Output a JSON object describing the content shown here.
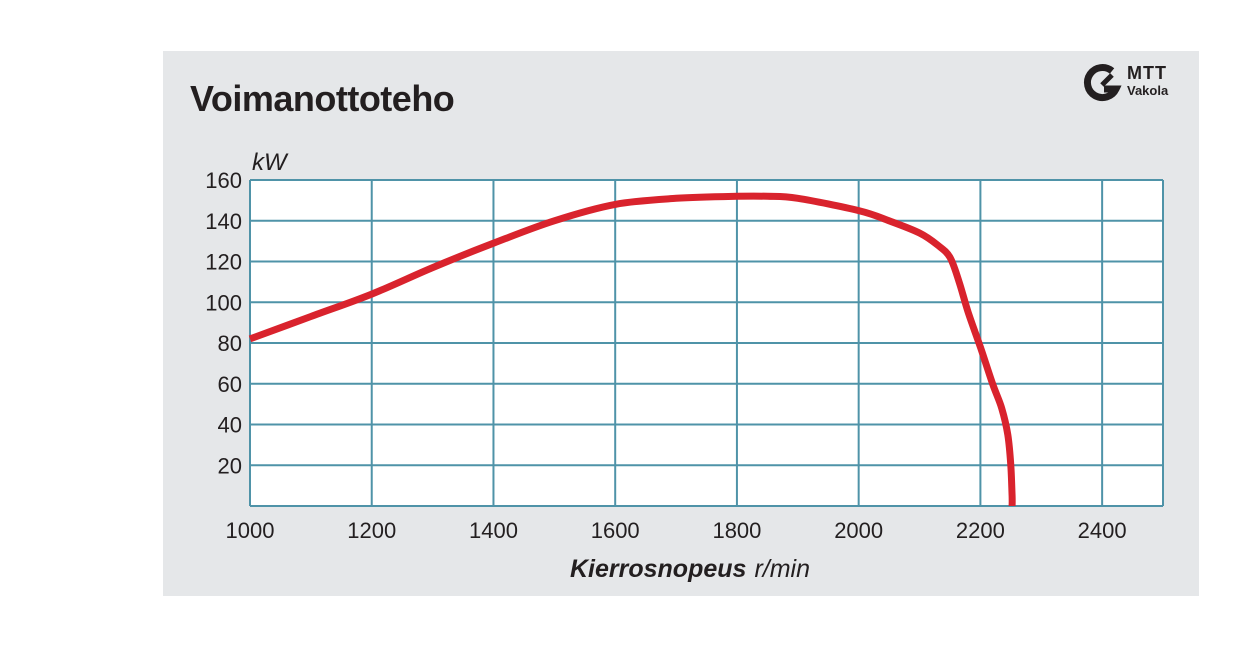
{
  "chart_data": {
    "type": "line",
    "title": "Voimanottoteho",
    "ylabel": "kW",
    "xlabel_bold": "Kierrosnopeus",
    "xlabel_unit": "r/min",
    "xlim": [
      1000,
      2500
    ],
    "ylim": [
      0,
      160
    ],
    "x_ticks": [
      1000,
      1200,
      1400,
      1600,
      1800,
      2000,
      2200,
      2400
    ],
    "y_ticks": [
      20,
      40,
      60,
      80,
      100,
      120,
      140,
      160
    ],
    "grid": true,
    "series": [
      {
        "color": "#d9232d",
        "x": [
          1000,
          1100,
          1200,
          1300,
          1400,
          1500,
          1600,
          1700,
          1800,
          1850,
          1900,
          2000,
          2050,
          2100,
          2130,
          2150,
          2165,
          2180,
          2200,
          2220,
          2235,
          2245,
          2250,
          2252,
          2252
        ],
        "y": [
          82,
          93,
          104,
          117,
          129,
          140,
          148,
          151,
          152,
          152,
          151,
          145,
          140,
          134,
          128,
          122,
          110,
          95,
          78,
          60,
          48,
          35,
          20,
          5,
          0
        ]
      }
    ]
  },
  "logo": {
    "line1": "MTT",
    "line2": "Vakola"
  }
}
